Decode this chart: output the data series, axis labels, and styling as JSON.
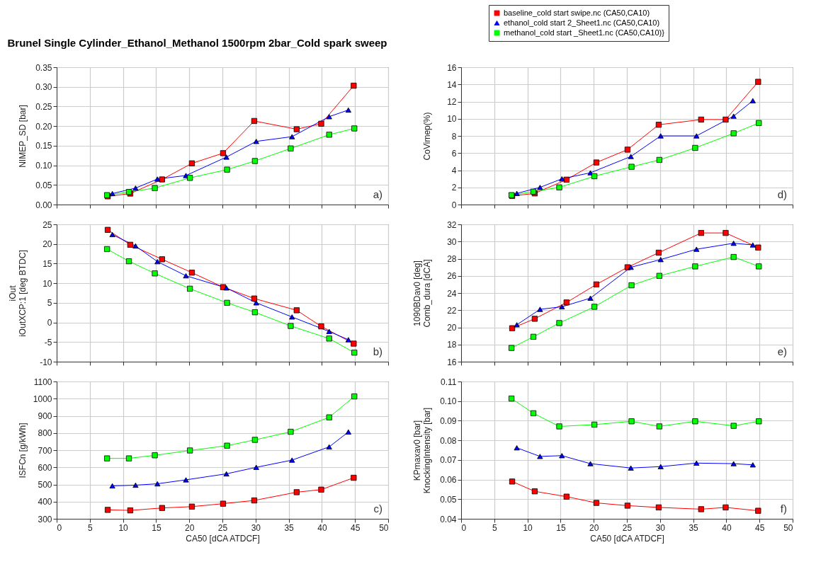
{
  "chart_data": [
    {
      "type": "line",
      "title": "Brunel Single Cylinder_Ethanol_Methanol 1500rpm 2bar_Cold spark sweep",
      "ylabel": "NIMEP_SD [bar]",
      "annotations": [
        "a)"
      ],
      "marker": "square",
      "grid": true,
      "tick_labels": "y",
      "xlim": [
        0,
        50
      ],
      "xticks": [
        0,
        5,
        10,
        15,
        20,
        25,
        30,
        35,
        40,
        45,
        50
      ],
      "ylim": [
        0,
        0.35
      ],
      "yticks": [
        {
          "value": 0,
          "label": "0.00"
        },
        0.05,
        {
          "value": 0.1,
          "label": "0.10"
        },
        0.15,
        {
          "value": 0.2,
          "label": "0.20"
        },
        0.25,
        {
          "value": 0.3,
          "label": "0.30"
        },
        0.35
      ],
      "series": [
        {
          "color": "#ff0000",
          "x": [
            7.7,
            11.1,
            15.9,
            20.4,
            25.1,
            29.8,
            36.2,
            39.9,
            44.8
          ],
          "values": [
            0.021,
            0.028,
            0.064,
            0.105,
            0.131,
            0.213,
            0.192,
            0.206,
            0.303
          ]
        },
        {
          "color": "#0000ff",
          "marker": "triangle",
          "x": [
            8.4,
            11.9,
            15.2,
            19.5,
            25.6,
            30.1,
            35.5,
            41.1,
            44.0
          ],
          "values": [
            0.028,
            0.042,
            0.065,
            0.074,
            0.121,
            0.161,
            0.173,
            0.224,
            0.241
          ]
        },
        {
          "color": "#00ff00",
          "x": [
            7.6,
            10.9,
            14.8,
            20.1,
            25.7,
            29.9,
            35.3,
            41.1,
            44.9
          ],
          "values": [
            0.024,
            0.032,
            0.042,
            0.068,
            0.089,
            0.111,
            0.143,
            0.178,
            0.194
          ]
        }
      ]
    },
    {
      "type": "line",
      "ylabel": "CoVimep(%)",
      "annotations": [
        "d)"
      ],
      "marker": "square",
      "grid": true,
      "legend": "top",
      "tick_labels": "y",
      "xlim": [
        0,
        50
      ],
      "xticks": [
        0,
        5,
        10,
        15,
        20,
        25,
        30,
        35,
        40,
        45,
        50
      ],
      "ylim": [
        0,
        16
      ],
      "yticks": [
        0,
        2,
        4,
        6,
        8,
        10,
        12,
        14,
        16
      ],
      "series": [
        {
          "name": "baseline_cold start swipe.nc (CA50,CA10)",
          "color": "#ff0000",
          "x": [
            7.7,
            11.1,
            15.9,
            20.4,
            25.1,
            29.8,
            36.2,
            39.9,
            44.8
          ],
          "values": [
            1.0,
            1.3,
            2.9,
            4.9,
            6.4,
            9.3,
            9.9,
            9.9,
            14.3
          ]
        },
        {
          "name": "ethanol_cold start 2_Sheet1.nc (CA50,CA10)",
          "color": "#0000ff",
          "marker": "triangle",
          "x": [
            8.4,
            11.9,
            15.2,
            19.5,
            25.6,
            30.1,
            35.5,
            41.1,
            44.0
          ],
          "values": [
            1.3,
            2.0,
            3.0,
            3.7,
            5.6,
            8.0,
            8.0,
            10.3,
            12.1
          ]
        },
        {
          "name": "methanol_cold start _Sheet1.nc (CA50,CA10)}",
          "color": "#00ff00",
          "x": [
            7.6,
            10.9,
            14.8,
            20.1,
            25.7,
            29.9,
            35.3,
            41.1,
            44.9
          ],
          "values": [
            1.1,
            1.5,
            2.0,
            3.3,
            4.4,
            5.2,
            6.6,
            8.3,
            9.5
          ]
        }
      ]
    },
    {
      "type": "line",
      "ylabel": "iOut\niOutXCP:1 [deg BTDC]",
      "annotations": [
        "b)"
      ],
      "marker": "square",
      "grid": true,
      "tick_labels": "y",
      "xlim": [
        0,
        50
      ],
      "xticks": [
        0,
        5,
        10,
        15,
        20,
        25,
        30,
        35,
        40,
        45,
        50
      ],
      "ylim": [
        -10,
        25
      ],
      "yticks": [
        -10,
        -5,
        0,
        5,
        10,
        15,
        20,
        25
      ],
      "series": [
        {
          "color": "#ff0000",
          "x": [
            7.7,
            11.1,
            15.9,
            20.4,
            25.1,
            29.8,
            36.2,
            39.9,
            44.8
          ],
          "values": [
            23.6,
            19.8,
            16.1,
            12.7,
            9.0,
            6.1,
            3.1,
            -1.0,
            -5.4
          ]
        },
        {
          "color": "#0000ff",
          "marker": "triangle",
          "x": [
            8.4,
            11.9,
            15.2,
            19.5,
            25.6,
            30.1,
            35.5,
            41.1,
            44.0
          ],
          "values": [
            22.4,
            19.5,
            15.5,
            11.9,
            8.8,
            5.0,
            1.4,
            -2.3,
            -4.4
          ]
        },
        {
          "color": "#00ff00",
          "x": [
            7.6,
            10.9,
            14.8,
            20.1,
            25.7,
            29.9,
            35.3,
            41.1,
            44.9
          ],
          "values": [
            18.7,
            15.6,
            12.5,
            8.6,
            5.0,
            2.6,
            -0.9,
            -4.1,
            -7.7
          ]
        }
      ]
    },
    {
      "type": "line",
      "ylabel": "1090BDav0 [deg]\nComb_dura [dCA]",
      "annotations": [
        "e)"
      ],
      "marker": "square",
      "grid": true,
      "tick_labels": "y",
      "xlim": [
        0,
        50
      ],
      "xticks": [
        0,
        5,
        10,
        15,
        20,
        25,
        30,
        35,
        40,
        45,
        50
      ],
      "ylim": [
        16,
        32
      ],
      "yticks": [
        16,
        18,
        20,
        22,
        24,
        26,
        28,
        30,
        32
      ],
      "series": [
        {
          "color": "#ff0000",
          "x": [
            7.7,
            11.1,
            15.9,
            20.4,
            25.1,
            29.8,
            36.2,
            39.9,
            44.8
          ],
          "values": [
            19.9,
            21.0,
            22.9,
            25.0,
            27.0,
            28.7,
            31.0,
            31.0,
            29.3
          ]
        },
        {
          "color": "#0000ff",
          "marker": "triangle",
          "x": [
            8.4,
            11.9,
            15.2,
            19.5,
            25.6,
            30.1,
            35.5,
            41.1,
            44.0
          ],
          "values": [
            20.3,
            22.1,
            22.4,
            23.4,
            27.0,
            27.9,
            29.1,
            29.8,
            29.6
          ]
        },
        {
          "color": "#00ff00",
          "x": [
            7.6,
            10.9,
            14.8,
            20.1,
            25.7,
            29.9,
            35.3,
            41.1,
            44.9
          ],
          "values": [
            17.6,
            18.9,
            20.5,
            22.4,
            24.9,
            26.0,
            27.1,
            28.2,
            27.1
          ]
        }
      ]
    },
    {
      "type": "line",
      "xlabel": "CA50 [dCA ATDCF]",
      "ylabel": "ISFCn [g/kWh]",
      "annotations": [
        "c)"
      ],
      "marker": "square",
      "grid": true,
      "xlim": [
        0,
        50
      ],
      "xticks": [
        0,
        5,
        10,
        15,
        20,
        25,
        30,
        35,
        40,
        45,
        50
      ],
      "ylim": [
        300,
        1100
      ],
      "yticks": [
        300,
        400,
        500,
        600,
        700,
        800,
        900,
        1000,
        1100
      ],
      "series": [
        {
          "color": "#ff0000",
          "x": [
            7.7,
            11.1,
            15.9,
            20.4,
            25.1,
            29.8,
            36.2,
            39.9,
            44.8
          ],
          "values": [
            352,
            349,
            363,
            371,
            388,
            407,
            455,
            470,
            539
          ]
        },
        {
          "color": "#0000ff",
          "marker": "triangle",
          "x": [
            8.4,
            11.9,
            15.2,
            19.5,
            25.6,
            30.1,
            35.5,
            41.1,
            44.0
          ],
          "values": [
            492,
            496,
            504,
            527,
            562,
            600,
            642,
            719,
            806
          ]
        },
        {
          "color": "#00ff00",
          "x": [
            7.6,
            10.9,
            14.8,
            20.1,
            25.7,
            29.9,
            35.3,
            41.1,
            44.9
          ],
          "values": [
            652,
            652,
            670,
            698,
            726,
            760,
            807,
            891,
            1013
          ]
        }
      ]
    },
    {
      "type": "line",
      "xlabel": "CA50 [dCA ATDCF]",
      "ylabel": "KPmaxav0 [bar]\nKnockingIntensity [bar]",
      "annotations": [
        "f)"
      ],
      "marker": "square",
      "grid": true,
      "xlim": [
        0,
        50
      ],
      "xticks": [
        0,
        5,
        10,
        15,
        20,
        25,
        30,
        35,
        40,
        45,
        50
      ],
      "ylim": [
        0.04,
        0.11
      ],
      "yticks": [
        0.04,
        0.05,
        0.06,
        0.07,
        0.08,
        0.09,
        {
          "value": 0.1,
          "label": "0.10"
        },
        0.11
      ],
      "series": [
        {
          "color": "#ff0000",
          "x": [
            7.7,
            11.1,
            15.9,
            20.4,
            25.1,
            29.8,
            36.2,
            39.9,
            44.8
          ],
          "values": [
            0.059,
            0.054,
            0.0513,
            0.0481,
            0.0467,
            0.0458,
            0.0449,
            0.0458,
            0.0441
          ]
        },
        {
          "color": "#0000ff",
          "marker": "triangle",
          "x": [
            8.4,
            11.9,
            15.2,
            19.5,
            25.6,
            30.1,
            35.5,
            41.1,
            44.0
          ],
          "values": [
            0.0762,
            0.0718,
            0.0722,
            0.0681,
            0.0659,
            0.0666,
            0.0684,
            0.0681,
            0.0675
          ]
        },
        {
          "color": "#00ff00",
          "x": [
            7.6,
            10.9,
            14.8,
            20.1,
            25.7,
            29.9,
            35.3,
            41.1,
            44.9
          ],
          "values": [
            0.1013,
            0.0938,
            0.0871,
            0.088,
            0.0897,
            0.0871,
            0.0897,
            0.0874,
            0.0897
          ]
        }
      ]
    }
  ]
}
